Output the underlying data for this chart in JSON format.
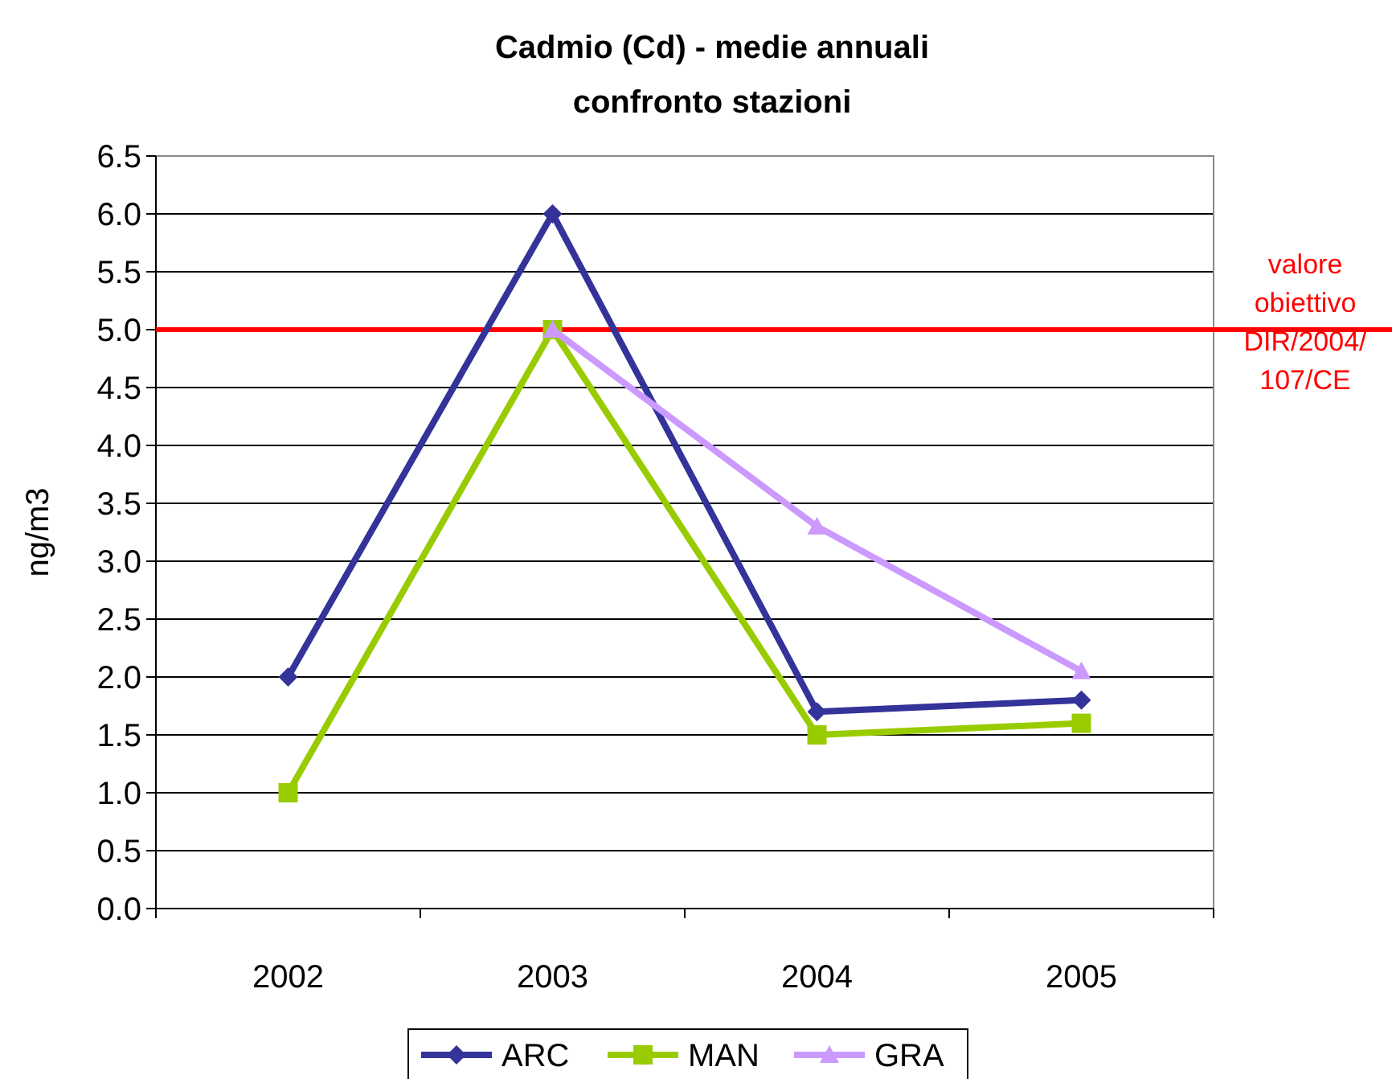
{
  "chart_data": {
    "type": "line",
    "title": "Cadmio (Cd) - medie annuali\nconfronto stazioni",
    "ylabel": "ng/m3",
    "categories": [
      "2002",
      "2003",
      "2004",
      "2005"
    ],
    "series": [
      {
        "name": "ARC",
        "color": "#333399",
        "values": [
          2.0,
          6.0,
          1.7,
          1.8
        ],
        "marker": "diamond"
      },
      {
        "name": "MAN",
        "color": "#99cc00",
        "values": [
          1.0,
          5.0,
          1.5,
          1.6
        ],
        "marker": "square"
      },
      {
        "name": "GRA",
        "color": "#cc99ff",
        "values": [
          null,
          5.0,
          3.3,
          2.05
        ],
        "marker": "triangle"
      }
    ],
    "ylim": [
      0,
      6.5
    ],
    "yticks": [
      {
        "value": 0,
        "label": "0.0"
      },
      {
        "value": 0.5,
        "label": "0.5"
      },
      {
        "value": 1,
        "label": "1.0"
      },
      {
        "value": 1.5,
        "label": "1.5"
      },
      {
        "value": 2,
        "label": "2.0"
      },
      {
        "value": 2.5,
        "label": "2.5"
      },
      {
        "value": 3,
        "label": "3.0"
      },
      {
        "value": 3.5,
        "label": "3.5"
      },
      {
        "value": 4,
        "label": "4.0"
      },
      {
        "value": 4.5,
        "label": "4.5"
      },
      {
        "value": 5,
        "label": "5.0"
      },
      {
        "value": 5.5,
        "label": "5.5"
      },
      {
        "value": 6,
        "label": "6.0"
      },
      {
        "value": 6.5,
        "label": "6.5"
      }
    ],
    "grid": "y",
    "legend": "bottom",
    "line_style": "solid",
    "ref_lines": [
      {
        "axis": "y",
        "value": 5,
        "label": "valore\nobiettivo\nDIR/2004/\n107/CE",
        "color": "#ff0000"
      }
    ]
  }
}
